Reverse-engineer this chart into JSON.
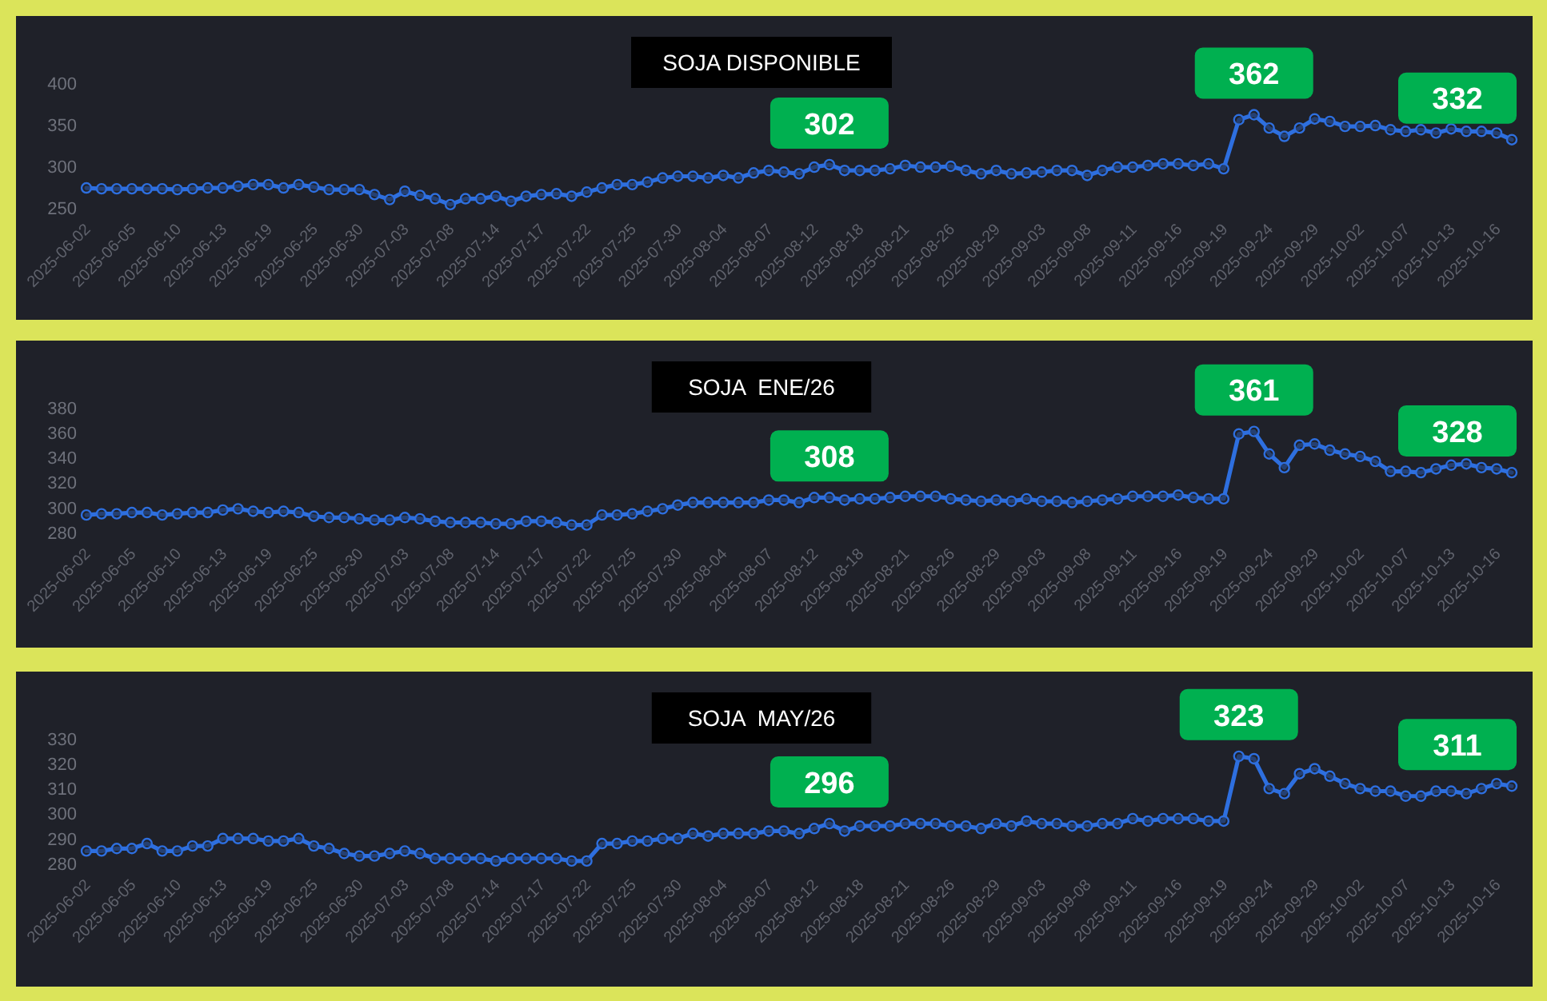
{
  "chart_data": [
    {
      "type": "line",
      "title": "SOJA DISPONIBLE",
      "categories": [
        "2025-06-02",
        null,
        null,
        "2025-06-05",
        null,
        null,
        "2025-06-10",
        null,
        null,
        "2025-06-13",
        null,
        null,
        "2025-06-19",
        null,
        null,
        "2025-06-25",
        null,
        null,
        "2025-06-30",
        null,
        null,
        "2025-07-03",
        null,
        null,
        "2025-07-08",
        null,
        null,
        "2025-07-14",
        null,
        null,
        "2025-07-17",
        null,
        null,
        "2025-07-22",
        null,
        null,
        "2025-07-25",
        null,
        null,
        "2025-07-30",
        null,
        null,
        "2025-08-04",
        null,
        null,
        "2025-08-07",
        null,
        null,
        "2025-08-12",
        null,
        null,
        "2025-08-18",
        null,
        null,
        "2025-08-21",
        null,
        null,
        "2025-08-26",
        null,
        null,
        "2025-08-29",
        null,
        null,
        "2025-09-03",
        null,
        null,
        "2025-09-08",
        null,
        null,
        "2025-09-11",
        null,
        null,
        "2025-09-16",
        null,
        null,
        "2025-09-19",
        null,
        null,
        "2025-09-24",
        null,
        null,
        "2025-09-29",
        null,
        null,
        "2025-10-02",
        null,
        null,
        "2025-10-07",
        null,
        null,
        "2025-10-13",
        null,
        null,
        "2025-10-16",
        null
      ],
      "series": [
        {
          "color": "#2e6fdf",
          "values": [
            274,
            273,
            273,
            273,
            273,
            273,
            272,
            273,
            274,
            274,
            276,
            278,
            278,
            274,
            278,
            275,
            272,
            272,
            272,
            266,
            260,
            270,
            265,
            261,
            254,
            261,
            261,
            264,
            258,
            264,
            266,
            267,
            264,
            269,
            274,
            278,
            278,
            281,
            286,
            288,
            288,
            286,
            289,
            286,
            292,
            295,
            293,
            291,
            299,
            302,
            295,
            295,
            295,
            297,
            301,
            299,
            299,
            300,
            295,
            291,
            295,
            291,
            292,
            293,
            295,
            295,
            289,
            295,
            299,
            299,
            301,
            303,
            303,
            301,
            303,
            297,
            356,
            362,
            346,
            336,
            346,
            357,
            354,
            348,
            348,
            349,
            344,
            342,
            344,
            340,
            345,
            342,
            342,
            340,
            332
          ],
          "value_labels": [
            null,
            null,
            null,
            null,
            null,
            null,
            null,
            null,
            null,
            null,
            null,
            null,
            null,
            null,
            null,
            null,
            null,
            null,
            null,
            null,
            null,
            null,
            null,
            null,
            null,
            null,
            null,
            null,
            null,
            null,
            null,
            null,
            null,
            null,
            null,
            null,
            null,
            null,
            null,
            null,
            null,
            null,
            null,
            null,
            null,
            null,
            null,
            null,
            null,
            "302",
            null,
            null,
            null,
            null,
            null,
            null,
            null,
            null,
            null,
            null,
            null,
            null,
            null,
            null,
            null,
            null,
            null,
            null,
            null,
            null,
            null,
            null,
            null,
            null,
            null,
            null,
            null,
            "362",
            null,
            null,
            null,
            null,
            null,
            null,
            null,
            null,
            null,
            null,
            null,
            null,
            null,
            null,
            null,
            null,
            "332"
          ]
        }
      ],
      "ylim": [
        250,
        400
      ],
      "yticks": [
        250,
        300,
        350,
        400
      ],
      "marker": "circle",
      "grid": false
    },
    {
      "type": "line",
      "title": "SOJA  ENE/26",
      "categories": [
        "2025-06-02",
        null,
        null,
        "2025-06-05",
        null,
        null,
        "2025-06-10",
        null,
        null,
        "2025-06-13",
        null,
        null,
        "2025-06-19",
        null,
        null,
        "2025-06-25",
        null,
        null,
        "2025-06-30",
        null,
        null,
        "2025-07-03",
        null,
        null,
        "2025-07-08",
        null,
        null,
        "2025-07-14",
        null,
        null,
        "2025-07-17",
        null,
        null,
        "2025-07-22",
        null,
        null,
        "2025-07-25",
        null,
        null,
        "2025-07-30",
        null,
        null,
        "2025-08-04",
        null,
        null,
        "2025-08-07",
        null,
        null,
        "2025-08-12",
        null,
        null,
        "2025-08-18",
        null,
        null,
        "2025-08-21",
        null,
        null,
        "2025-08-26",
        null,
        null,
        "2025-08-29",
        null,
        null,
        "2025-09-03",
        null,
        null,
        "2025-09-08",
        null,
        null,
        "2025-09-11",
        null,
        null,
        "2025-09-16",
        null,
        null,
        "2025-09-19",
        null,
        null,
        "2025-09-24",
        null,
        null,
        "2025-09-29",
        null,
        null,
        "2025-10-02",
        null,
        null,
        "2025-10-07",
        null,
        null,
        "2025-10-13",
        null,
        null,
        "2025-10-16",
        null
      ],
      "series": [
        {
          "color": "#2e6fdf",
          "values": [
            294,
            295,
            295,
            296,
            296,
            294,
            295,
            296,
            296,
            298,
            299,
            297,
            296,
            297,
            296,
            293,
            292,
            292,
            291,
            290,
            290,
            292,
            291,
            289,
            288,
            288,
            288,
            287,
            287,
            289,
            289,
            288,
            286,
            286,
            294,
            294,
            295,
            297,
            299,
            302,
            304,
            304,
            304,
            304,
            304,
            306,
            306,
            304,
            308,
            308,
            306,
            307,
            307,
            308,
            309,
            309,
            309,
            307,
            306,
            305,
            306,
            305,
            307,
            305,
            305,
            304,
            305,
            306,
            307,
            309,
            309,
            309,
            310,
            308,
            307,
            307,
            359,
            361,
            343,
            332,
            350,
            351,
            346,
            343,
            341,
            337,
            329,
            329,
            328,
            331,
            334,
            335,
            332,
            331,
            328
          ],
          "value_labels": [
            null,
            null,
            null,
            null,
            null,
            null,
            null,
            null,
            null,
            null,
            null,
            null,
            null,
            null,
            null,
            null,
            null,
            null,
            null,
            null,
            null,
            null,
            null,
            null,
            null,
            null,
            null,
            null,
            null,
            null,
            null,
            null,
            null,
            null,
            null,
            null,
            null,
            null,
            null,
            null,
            null,
            null,
            null,
            null,
            null,
            null,
            null,
            null,
            null,
            "308",
            null,
            null,
            null,
            null,
            null,
            null,
            null,
            null,
            null,
            null,
            null,
            null,
            null,
            null,
            null,
            null,
            null,
            null,
            null,
            null,
            null,
            null,
            null,
            null,
            null,
            null,
            null,
            "361",
            null,
            null,
            null,
            null,
            null,
            null,
            null,
            null,
            null,
            null,
            null,
            null,
            null,
            null,
            null,
            null,
            "328"
          ]
        }
      ],
      "ylim": [
        280,
        380
      ],
      "yticks": [
        280,
        300,
        320,
        340,
        360,
        380
      ],
      "marker": "circle",
      "grid": false
    },
    {
      "type": "line",
      "title": "SOJA  MAY/26",
      "categories": [
        "2025-06-02",
        null,
        null,
        "2025-06-05",
        null,
        null,
        "2025-06-10",
        null,
        null,
        "2025-06-13",
        null,
        null,
        "2025-06-19",
        null,
        null,
        "2025-06-25",
        null,
        null,
        "2025-06-30",
        null,
        null,
        "2025-07-03",
        null,
        null,
        "2025-07-08",
        null,
        null,
        "2025-07-14",
        null,
        null,
        "2025-07-17",
        null,
        null,
        "2025-07-22",
        null,
        null,
        "2025-07-25",
        null,
        null,
        "2025-07-30",
        null,
        null,
        "2025-08-04",
        null,
        null,
        "2025-08-07",
        null,
        null,
        "2025-08-12",
        null,
        null,
        "2025-08-18",
        null,
        null,
        "2025-08-21",
        null,
        null,
        "2025-08-26",
        null,
        null,
        "2025-08-29",
        null,
        null,
        "2025-09-03",
        null,
        null,
        "2025-09-08",
        null,
        null,
        "2025-09-11",
        null,
        null,
        "2025-09-16",
        null,
        null,
        "2025-09-19",
        null,
        null,
        "2025-09-24",
        null,
        null,
        "2025-09-29",
        null,
        null,
        "2025-10-02",
        null,
        null,
        "2025-10-07",
        null,
        null,
        "2025-10-13",
        null,
        null,
        "2025-10-16",
        null
      ],
      "series": [
        {
          "color": "#2e6fdf",
          "values": [
            285,
            285,
            286,
            286,
            288,
            285,
            285,
            287,
            287,
            290,
            290,
            290,
            289,
            289,
            290,
            287,
            286,
            284,
            283,
            283,
            284,
            285,
            284,
            282,
            282,
            282,
            282,
            281,
            282,
            282,
            282,
            282,
            281,
            281,
            288,
            288,
            289,
            289,
            290,
            290,
            292,
            291,
            292,
            292,
            292,
            293,
            293,
            292,
            294,
            296,
            293,
            295,
            295,
            295,
            296,
            296,
            296,
            295,
            295,
            294,
            296,
            295,
            297,
            296,
            296,
            295,
            295,
            296,
            296,
            298,
            297,
            298,
            298,
            298,
            297,
            297,
            323,
            322,
            310,
            308,
            316,
            318,
            315,
            312,
            310,
            309,
            309,
            307,
            307,
            309,
            309,
            308,
            310,
            312,
            311
          ],
          "value_labels": [
            null,
            null,
            null,
            null,
            null,
            null,
            null,
            null,
            null,
            null,
            null,
            null,
            null,
            null,
            null,
            null,
            null,
            null,
            null,
            null,
            null,
            null,
            null,
            null,
            null,
            null,
            null,
            null,
            null,
            null,
            null,
            null,
            null,
            null,
            null,
            null,
            null,
            null,
            null,
            null,
            null,
            null,
            null,
            null,
            null,
            null,
            null,
            null,
            null,
            "296",
            null,
            null,
            null,
            null,
            null,
            null,
            null,
            null,
            null,
            null,
            null,
            null,
            null,
            null,
            null,
            null,
            null,
            null,
            null,
            null,
            null,
            null,
            null,
            null,
            null,
            null,
            "323",
            null,
            null,
            null,
            null,
            null,
            null,
            null,
            null,
            null,
            null,
            null,
            null,
            null,
            null,
            null,
            null,
            null,
            "311"
          ]
        }
      ],
      "ylim": [
        280,
        330
      ],
      "yticks": [
        280,
        290,
        300,
        310,
        320,
        330
      ],
      "marker": "circle",
      "grid": false
    }
  ]
}
